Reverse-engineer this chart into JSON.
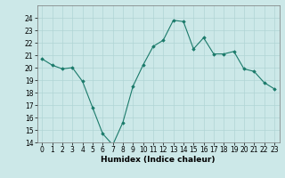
{
  "x": [
    0,
    1,
    2,
    3,
    4,
    5,
    6,
    7,
    8,
    9,
    10,
    11,
    12,
    13,
    14,
    15,
    16,
    17,
    18,
    19,
    20,
    21,
    22,
    23
  ],
  "y": [
    20.7,
    20.2,
    19.9,
    20.0,
    18.9,
    16.8,
    14.7,
    13.8,
    15.6,
    18.5,
    20.2,
    21.7,
    22.2,
    23.8,
    23.7,
    21.5,
    22.4,
    21.1,
    21.1,
    21.3,
    19.9,
    19.7,
    18.8,
    18.3
  ],
  "line_color": "#1a7a6a",
  "marker_color": "#1a7a6a",
  "bg_color": "#cce8e8",
  "grid_color": "#b0d4d4",
  "xlabel": "Humidex (Indice chaleur)",
  "ylim": [
    14,
    25
  ],
  "xlim": [
    -0.5,
    23.5
  ],
  "yticks": [
    14,
    15,
    16,
    17,
    18,
    19,
    20,
    21,
    22,
    23,
    24
  ],
  "tick_fontsize": 5.5,
  "xlabel_fontsize": 6.5
}
